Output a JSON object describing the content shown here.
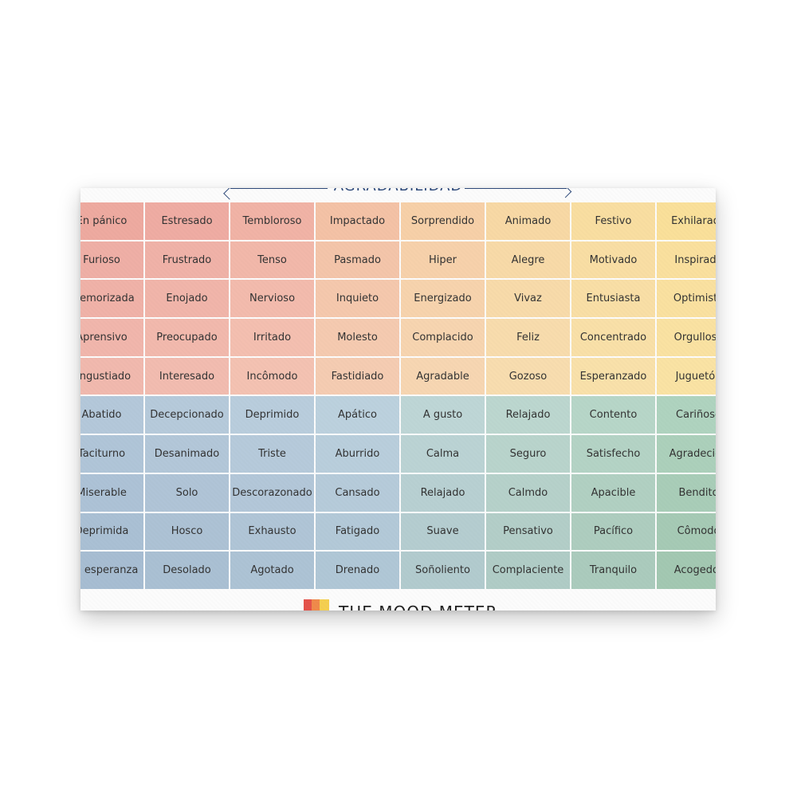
{
  "axis": {
    "label": "AGRADABILIDAD"
  },
  "logo": {
    "text": "THE MOOD METER"
  },
  "colors": {
    "logo_red": "#e5534b",
    "logo_orange": "#f08a4b",
    "logo_yellow": "#f5cf50"
  },
  "grid": {
    "rows": [
      {
        "cells": [
          {
            "label": "En pánico",
            "color": "#eeaaa0"
          },
          {
            "label": "Estresado",
            "color": "#efaca3"
          },
          {
            "label": "Tembloroso",
            "color": "#f1b3a6"
          },
          {
            "label": "Impactado",
            "color": "#f4c2a6"
          },
          {
            "label": "Sorprendido",
            "color": "#f7d0a8"
          },
          {
            "label": "Animado",
            "color": "#f8d9a5"
          },
          {
            "label": "Festivo",
            "color": "#f9dea1"
          },
          {
            "label": "Exhilarado",
            "color": "#fae09a"
          }
        ]
      },
      {
        "cells": [
          {
            "label": "Furioso",
            "color": "#efafa6"
          },
          {
            "label": "Frustrado",
            "color": "#f0b2a8"
          },
          {
            "label": "Tenso",
            "color": "#f2b8aa"
          },
          {
            "label": "Pasmado",
            "color": "#f4c5aa"
          },
          {
            "label": "Hiper",
            "color": "#f7d1ab"
          },
          {
            "label": "Alegre",
            "color": "#f8daa8"
          },
          {
            "label": "Motivado",
            "color": "#f9dea4"
          },
          {
            "label": "Inspirado",
            "color": "#fae09e"
          }
        ]
      },
      {
        "cells": [
          {
            "label": "Atemorizada",
            "color": "#f0b2a8"
          },
          {
            "label": "Enojado",
            "color": "#f1b5aa"
          },
          {
            "label": "Nervioso",
            "color": "#f3bbad"
          },
          {
            "label": "Inquieto",
            "color": "#f5c8ad"
          },
          {
            "label": "Energizado",
            "color": "#f7d3ad"
          },
          {
            "label": "Vivaz",
            "color": "#f8dbaa"
          },
          {
            "label": "Entusiasta",
            "color": "#f9dfa6"
          },
          {
            "label": "Optimista",
            "color": "#fae1a0"
          }
        ]
      },
      {
        "cells": [
          {
            "label": "Aprensivo",
            "color": "#f1b6ac"
          },
          {
            "label": "Preocupado",
            "color": "#f2b9ad"
          },
          {
            "label": "Irritado",
            "color": "#f4bfb0"
          },
          {
            "label": "Molesto",
            "color": "#f5cab0"
          },
          {
            "label": "Complacido",
            "color": "#f7d5b0"
          },
          {
            "label": "Feliz",
            "color": "#f8dcad"
          },
          {
            "label": "Concentrado",
            "color": "#f9e0a8"
          },
          {
            "label": "Orgulloso",
            "color": "#fae2a2"
          }
        ]
      },
      {
        "cells": [
          {
            "label": "Angustiado",
            "color": "#f1b9ae"
          },
          {
            "label": "Interesado",
            "color": "#f2bcb0"
          },
          {
            "label": "Incômodo",
            "color": "#f4c2b2"
          },
          {
            "label": "Fastidiado",
            "color": "#f5ccb2"
          },
          {
            "label": "Agradable",
            "color": "#f7d6b2"
          },
          {
            "label": "Gozoso",
            "color": "#f8ddaf"
          },
          {
            "label": "Esperanzado",
            "color": "#f9e1aa"
          },
          {
            "label": "Juguetón",
            "color": "#fae3a4"
          }
        ]
      },
      {
        "cells": [
          {
            "label": "Abatido",
            "color": "#b4c8da"
          },
          {
            "label": "Decepcionado",
            "color": "#b6cadb"
          },
          {
            "label": "Deprimido",
            "color": "#b9cddd"
          },
          {
            "label": "Apático",
            "color": "#bcd1de"
          },
          {
            "label": "A gusto",
            "color": "#bed6d6"
          },
          {
            "label": "Relajado",
            "color": "#bcd7cf"
          },
          {
            "label": "Contento",
            "color": "#b7d6c8"
          },
          {
            "label": "Cariñoso",
            "color": "#afd3bf"
          }
        ]
      },
      {
        "cells": [
          {
            "label": "Taciturno",
            "color": "#b0c5d8"
          },
          {
            "label": "Desanimado",
            "color": "#b3c7d9"
          },
          {
            "label": "Triste",
            "color": "#b6cadb"
          },
          {
            "label": "Aburrido",
            "color": "#b9cedc"
          },
          {
            "label": "Calma",
            "color": "#bbd3d4"
          },
          {
            "label": "Seguro",
            "color": "#b9d4cc"
          },
          {
            "label": "Satisfecho",
            "color": "#b4d3c5"
          },
          {
            "label": "Agradecido",
            "color": "#acd0bb"
          }
        ]
      },
      {
        "cells": [
          {
            "label": "Miserable",
            "color": "#adc2d6"
          },
          {
            "label": "Solo",
            "color": "#b0c4d7"
          },
          {
            "label": "Descorazonado",
            "color": "#b3c7d9"
          },
          {
            "label": "Cansado",
            "color": "#b6cbda"
          },
          {
            "label": "Relajado",
            "color": "#b8d0d2"
          },
          {
            "label": "Calmdo",
            "color": "#b6d1ca"
          },
          {
            "label": "Apacible",
            "color": "#b1d0c2"
          },
          {
            "label": "Bendito",
            "color": "#a9cdb8"
          }
        ]
      },
      {
        "cells": [
          {
            "label": "Deprimida",
            "color": "#aac0d4"
          },
          {
            "label": "Hosco",
            "color": "#adc2d5"
          },
          {
            "label": "Exhausto",
            "color": "#b0c5d7"
          },
          {
            "label": "Fatigado",
            "color": "#b3c9d8"
          },
          {
            "label": "Suave",
            "color": "#b5cdd0"
          },
          {
            "label": "Pensativo",
            "color": "#b3cec8"
          },
          {
            "label": "Pacífico",
            "color": "#aecdbf"
          },
          {
            "label": "Cômodo",
            "color": "#a6cab5"
          }
        ]
      },
      {
        "cells": [
          {
            "label": "Sin esperanza",
            "color": "#a7bdd2"
          },
          {
            "label": "Desolado",
            "color": "#aac0d3"
          },
          {
            "label": "Agotado",
            "color": "#adc3d5"
          },
          {
            "label": "Drenado",
            "color": "#b0c7d6"
          },
          {
            "label": "Soñoliento",
            "color": "#b2cbce"
          },
          {
            "label": "Complaciente",
            "color": "#b0ccc6"
          },
          {
            "label": "Tranquilo",
            "color": "#abcbbd"
          },
          {
            "label": "Acogedor",
            "color": "#a3c8b2"
          }
        ]
      }
    ]
  }
}
